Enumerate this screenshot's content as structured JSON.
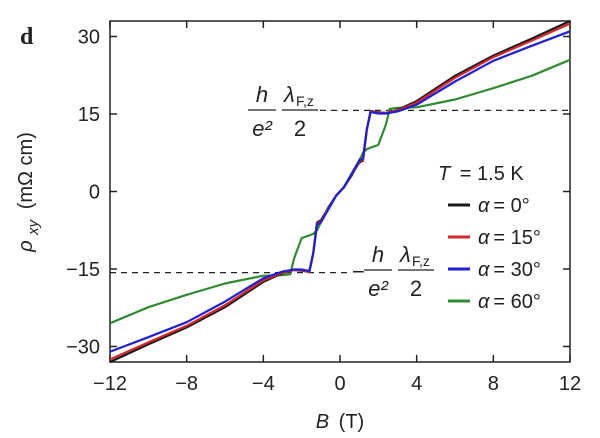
{
  "chart_data": {
    "type": "line",
    "panel_label": "d",
    "xlabel": {
      "symbol": "B",
      "unit": "(T)"
    },
    "ylabel": {
      "symbol": "ρ",
      "subscript": "xy",
      "unit": "(mΩ cm)"
    },
    "xlim": [
      -12,
      12
    ],
    "ylim": [
      -33,
      33
    ],
    "xticks": [
      -12,
      -8,
      -4,
      0,
      4,
      8,
      12
    ],
    "xtick_labels": [
      "−12",
      "−8",
      "−4",
      "0",
      "4",
      "8",
      "12"
    ],
    "yticks": [
      -30,
      -15,
      0,
      15,
      30
    ],
    "ytick_labels": [
      "−30",
      "−15",
      "0",
      "15",
      "30"
    ],
    "legend": {
      "title": {
        "symbol": "T",
        "value": "= 1.5 K"
      },
      "placement": "right",
      "entries": [
        {
          "symbol": "α",
          "value": "= 0°"
        },
        {
          "symbol": "α",
          "value": "= 15°"
        },
        {
          "symbol": "α",
          "value": "= 30°"
        },
        {
          "symbol": "α",
          "value": "= 60°"
        }
      ]
    },
    "annotations": [
      {
        "kind": "fraction",
        "sign": "",
        "num_a": "h",
        "den_a": "e²",
        "num_b": "λ",
        "num_b_sub": "F,z",
        "den_b": "2",
        "level": 15.7
      },
      {
        "kind": "fraction",
        "sign": "−",
        "num_a": "h",
        "den_a": "e²",
        "num_b": "λ",
        "num_b_sub": "F,z",
        "den_b": "2",
        "level": -15.7
      }
    ],
    "reference_lines": [
      15.7,
      -15.7
    ],
    "series": [
      {
        "color": "#1a1a1a",
        "x": [
          -12,
          -10,
          -8,
          -6,
          -4,
          -3,
          -2.4,
          -2,
          -1.6,
          -1.4,
          -1.2,
          -1,
          -0.6,
          -0.2,
          0,
          0.2,
          0.6,
          1,
          1.2,
          1.4,
          1.6,
          2,
          2.4,
          3,
          4,
          6,
          8,
          10,
          12
        ],
        "y": [
          -33,
          -29.6,
          -26.3,
          -22.4,
          -17.5,
          -15.8,
          -15.2,
          -15.3,
          -15.6,
          -12,
          -6,
          -5.6,
          -3.2,
          -0.8,
          0,
          0.8,
          3.2,
          5.6,
          6,
          12,
          15.6,
          15.3,
          15.2,
          15.8,
          17.5,
          22.4,
          26.3,
          29.6,
          33
        ]
      },
      {
        "color": "#d62728",
        "x": [
          -12,
          -10,
          -8,
          -6,
          -4,
          -3,
          -2.4,
          -2,
          -1.6,
          -1.4,
          -1.2,
          -1,
          -0.6,
          -0.2,
          0,
          0.2,
          0.6,
          1,
          1.2,
          1.4,
          1.6,
          2,
          2.4,
          3,
          4,
          6,
          8,
          10,
          12
        ],
        "y": [
          -32.5,
          -29.2,
          -26,
          -22,
          -17.2,
          -15.7,
          -15.2,
          -15.2,
          -15.6,
          -12,
          -6.2,
          -5.8,
          -3.3,
          -0.8,
          0,
          0.8,
          3.3,
          5.8,
          6.2,
          12,
          15.6,
          15.2,
          15.2,
          15.7,
          17.2,
          22,
          26,
          29.2,
          32.5
        ]
      },
      {
        "color": "#1f1fd6",
        "x": [
          -12,
          -10,
          -8,
          -6,
          -4,
          -3,
          -2.4,
          -2,
          -1.6,
          -1.4,
          -1.2,
          -1,
          -0.6,
          -0.2,
          0,
          0.2,
          0.6,
          1,
          1.2,
          1.4,
          1.6,
          2,
          2.4,
          3,
          4,
          6,
          8,
          10,
          12
        ],
        "y": [
          -31,
          -28.2,
          -25.3,
          -21.3,
          -16.8,
          -15.5,
          -15.1,
          -15.1,
          -15.4,
          -12,
          -6.4,
          -6,
          -3.4,
          -0.8,
          0,
          0.8,
          3.4,
          6,
          6.4,
          12,
          15.4,
          15.1,
          15.1,
          15.5,
          16.8,
          21.3,
          25.3,
          28.2,
          31
        ]
      },
      {
        "color": "#2e8b2e",
        "x": [
          -12,
          -10,
          -8,
          -6,
          -4,
          -3,
          -2.6,
          -2.4,
          -2,
          -1.6,
          -1.4,
          -1.2,
          -1,
          -0.6,
          -0.2,
          0,
          0.2,
          0.6,
          1,
          1.2,
          1.4,
          1.6,
          2,
          2.4,
          2.6,
          3,
          4,
          6,
          8,
          10,
          12
        ],
        "y": [
          -25.5,
          -22.4,
          -20,
          -17.8,
          -16.3,
          -16.2,
          -16,
          -13,
          -9,
          -8.5,
          -8.2,
          -7.5,
          -6,
          -3,
          -0.8,
          0,
          0.8,
          3,
          6,
          7.5,
          8.2,
          8.5,
          9,
          13,
          16,
          16.2,
          16.3,
          17.8,
          20,
          22.4,
          25.5
        ]
      }
    ]
  }
}
